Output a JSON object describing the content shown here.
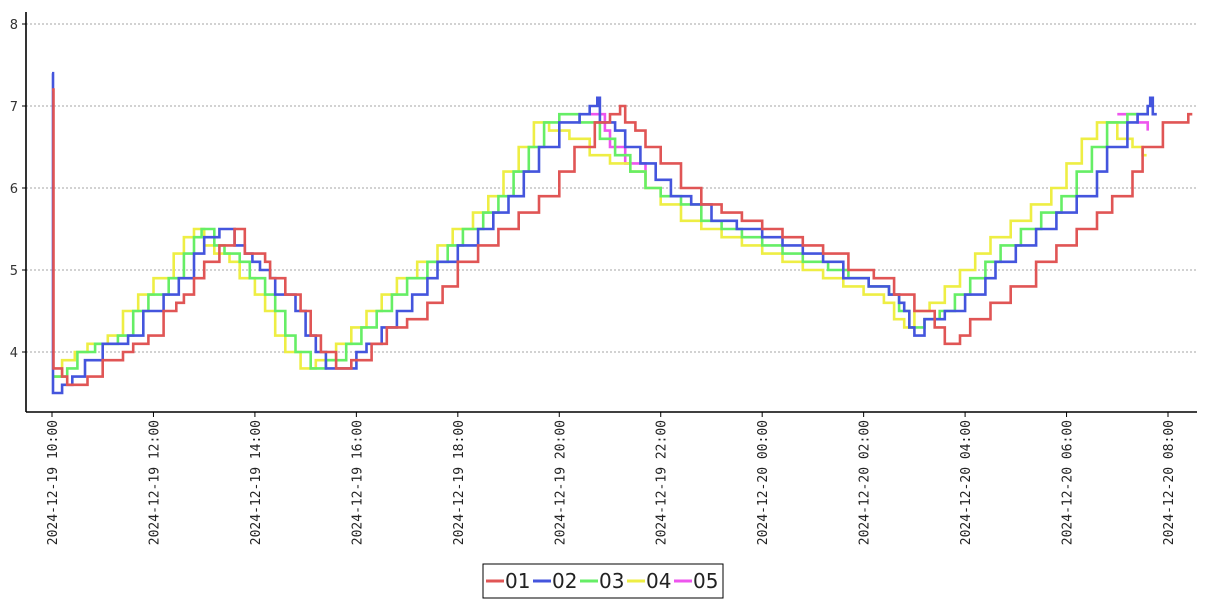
{
  "chart_data": {
    "type": "line",
    "step": true,
    "ylim": [
      3.35,
      8.1
    ],
    "yticks": [
      4,
      5,
      6,
      7,
      8
    ],
    "grid": true,
    "legend_position": "bottom-center",
    "xticks": [
      {
        "x": 0,
        "label": "2024-12-19 10:00"
      },
      {
        "x": 2,
        "label": "2024-12-19 12:00"
      },
      {
        "x": 4,
        "label": "2024-12-19 14:00"
      },
      {
        "x": 6,
        "label": "2024-12-19 16:00"
      },
      {
        "x": 8,
        "label": "2024-12-19 18:00"
      },
      {
        "x": 10,
        "label": "2024-12-19 20:00"
      },
      {
        "x": 12,
        "label": "2024-12-19 22:00"
      },
      {
        "x": 14,
        "label": "2024-12-20 00:00"
      },
      {
        "x": 16,
        "label": "2024-12-20 02:00"
      },
      {
        "x": 18,
        "label": "2024-12-20 04:00"
      },
      {
        "x": 20,
        "label": "2024-12-20 06:00"
      },
      {
        "x": 22,
        "label": "2024-12-20 08:00"
      }
    ],
    "xlim": [
      -0.05,
      22.7
    ],
    "series": [
      {
        "name": "01",
        "color": "#e05555",
        "points": [
          [
            0,
            7.2
          ],
          [
            0.03,
            3.8
          ],
          [
            0.2,
            3.7
          ],
          [
            0.3,
            3.6
          ],
          [
            0.7,
            3.7
          ],
          [
            1.0,
            3.9
          ],
          [
            1.4,
            4.0
          ],
          [
            1.6,
            4.1
          ],
          [
            1.9,
            4.2
          ],
          [
            2.2,
            4.5
          ],
          [
            2.45,
            4.6
          ],
          [
            2.6,
            4.7
          ],
          [
            2.8,
            4.9
          ],
          [
            3.0,
            5.1
          ],
          [
            3.3,
            5.3
          ],
          [
            3.6,
            5.5
          ],
          [
            3.8,
            5.2
          ],
          [
            4.2,
            5.1
          ],
          [
            4.3,
            4.9
          ],
          [
            4.6,
            4.7
          ],
          [
            4.9,
            4.5
          ],
          [
            5.1,
            4.2
          ],
          [
            5.3,
            4.0
          ],
          [
            5.6,
            3.8
          ],
          [
            5.9,
            3.9
          ],
          [
            6.3,
            4.1
          ],
          [
            6.6,
            4.3
          ],
          [
            7.0,
            4.4
          ],
          [
            7.4,
            4.6
          ],
          [
            7.7,
            4.8
          ],
          [
            8.0,
            5.1
          ],
          [
            8.4,
            5.3
          ],
          [
            8.8,
            5.5
          ],
          [
            9.2,
            5.7
          ],
          [
            9.6,
            5.9
          ],
          [
            10.0,
            6.2
          ],
          [
            10.3,
            6.5
          ],
          [
            10.7,
            6.8
          ],
          [
            11.0,
            6.9
          ],
          [
            11.2,
            7.0
          ],
          [
            11.3,
            6.8
          ],
          [
            11.5,
            6.7
          ],
          [
            11.7,
            6.5
          ],
          [
            12.0,
            6.3
          ],
          [
            12.4,
            6.0
          ],
          [
            12.8,
            5.8
          ],
          [
            13.2,
            5.7
          ],
          [
            13.6,
            5.6
          ],
          [
            14.0,
            5.5
          ],
          [
            14.4,
            5.4
          ],
          [
            14.8,
            5.3
          ],
          [
            15.2,
            5.2
          ],
          [
            15.7,
            5.0
          ],
          [
            16.2,
            4.9
          ],
          [
            16.6,
            4.7
          ],
          [
            17.0,
            4.5
          ],
          [
            17.4,
            4.3
          ],
          [
            17.6,
            4.1
          ],
          [
            17.9,
            4.2
          ],
          [
            18.1,
            4.4
          ],
          [
            18.5,
            4.6
          ],
          [
            18.9,
            4.8
          ],
          [
            19.4,
            5.1
          ],
          [
            19.8,
            5.3
          ],
          [
            20.2,
            5.5
          ],
          [
            20.6,
            5.7
          ],
          [
            20.9,
            5.9
          ],
          [
            21.3,
            6.2
          ],
          [
            21.5,
            6.5
          ],
          [
            21.9,
            6.8
          ],
          [
            22.0,
            6.8
          ],
          [
            22.4,
            6.9
          ]
        ]
      },
      {
        "name": "02",
        "color": "#4455dd",
        "points": [
          [
            0,
            7.4
          ],
          [
            0.02,
            3.5
          ],
          [
            0.2,
            3.6
          ],
          [
            0.4,
            3.7
          ],
          [
            0.65,
            3.9
          ],
          [
            1.0,
            4.1
          ],
          [
            1.5,
            4.2
          ],
          [
            1.8,
            4.5
          ],
          [
            2.2,
            4.7
          ],
          [
            2.5,
            4.9
          ],
          [
            2.8,
            5.2
          ],
          [
            3.0,
            5.4
          ],
          [
            3.3,
            5.5
          ],
          [
            3.6,
            5.3
          ],
          [
            3.8,
            5.2
          ],
          [
            3.95,
            5.1
          ],
          [
            4.1,
            5.0
          ],
          [
            4.3,
            4.9
          ],
          [
            4.4,
            4.7
          ],
          [
            4.8,
            4.5
          ],
          [
            5.0,
            4.2
          ],
          [
            5.2,
            4.0
          ],
          [
            5.4,
            3.8
          ],
          [
            5.7,
            3.8
          ],
          [
            6.0,
            4.0
          ],
          [
            6.2,
            4.1
          ],
          [
            6.5,
            4.3
          ],
          [
            6.8,
            4.5
          ],
          [
            7.1,
            4.7
          ],
          [
            7.4,
            4.9
          ],
          [
            7.6,
            5.1
          ],
          [
            8.0,
            5.3
          ],
          [
            8.4,
            5.5
          ],
          [
            8.7,
            5.7
          ],
          [
            9.0,
            5.9
          ],
          [
            9.3,
            6.2
          ],
          [
            9.6,
            6.5
          ],
          [
            10.0,
            6.8
          ],
          [
            10.4,
            6.9
          ],
          [
            10.6,
            7.0
          ],
          [
            10.75,
            7.1
          ],
          [
            10.8,
            6.8
          ],
          [
            11.1,
            6.7
          ],
          [
            11.3,
            6.5
          ],
          [
            11.6,
            6.3
          ],
          [
            11.9,
            6.1
          ],
          [
            12.2,
            5.9
          ],
          [
            12.6,
            5.8
          ],
          [
            13.0,
            5.6
          ],
          [
            13.5,
            5.5
          ],
          [
            14.0,
            5.4
          ],
          [
            14.4,
            5.3
          ],
          [
            14.8,
            5.2
          ],
          [
            15.2,
            5.1
          ],
          [
            15.6,
            4.9
          ],
          [
            16.1,
            4.8
          ],
          [
            16.5,
            4.7
          ],
          [
            16.7,
            4.6
          ],
          [
            16.8,
            4.5
          ],
          [
            16.9,
            4.3
          ],
          [
            17.0,
            4.2
          ],
          [
            17.2,
            4.4
          ],
          [
            17.6,
            4.5
          ],
          [
            18.0,
            4.7
          ],
          [
            18.4,
            4.9
          ],
          [
            18.6,
            5.1
          ],
          [
            19.0,
            5.3
          ],
          [
            19.4,
            5.5
          ],
          [
            19.8,
            5.7
          ],
          [
            20.2,
            5.9
          ],
          [
            20.6,
            6.2
          ],
          [
            20.8,
            6.5
          ],
          [
            21.2,
            6.8
          ],
          [
            21.4,
            6.9
          ],
          [
            21.6,
            7.0
          ],
          [
            21.65,
            7.1
          ],
          [
            21.7,
            6.9
          ]
        ]
      },
      {
        "name": "03",
        "color": "#66ee66",
        "points": [
          [
            0,
            3.7
          ],
          [
            0.3,
            3.8
          ],
          [
            0.5,
            4.0
          ],
          [
            0.85,
            4.1
          ],
          [
            1.3,
            4.2
          ],
          [
            1.6,
            4.5
          ],
          [
            1.9,
            4.7
          ],
          [
            2.3,
            4.9
          ],
          [
            2.6,
            5.2
          ],
          [
            2.8,
            5.4
          ],
          [
            2.95,
            5.5
          ],
          [
            3.2,
            5.3
          ],
          [
            3.4,
            5.2
          ],
          [
            3.7,
            5.1
          ],
          [
            3.9,
            4.9
          ],
          [
            4.2,
            4.7
          ],
          [
            4.4,
            4.5
          ],
          [
            4.6,
            4.2
          ],
          [
            4.8,
            4.0
          ],
          [
            5.1,
            3.8
          ],
          [
            5.4,
            3.9
          ],
          [
            5.8,
            4.1
          ],
          [
            6.1,
            4.3
          ],
          [
            6.4,
            4.5
          ],
          [
            6.7,
            4.7
          ],
          [
            7.0,
            4.9
          ],
          [
            7.4,
            5.1
          ],
          [
            7.8,
            5.3
          ],
          [
            8.1,
            5.5
          ],
          [
            8.5,
            5.7
          ],
          [
            8.8,
            5.9
          ],
          [
            9.1,
            6.2
          ],
          [
            9.4,
            6.5
          ],
          [
            9.7,
            6.8
          ],
          [
            10.0,
            6.9
          ],
          [
            10.4,
            6.8
          ],
          [
            10.8,
            6.6
          ],
          [
            11.1,
            6.4
          ],
          [
            11.4,
            6.2
          ],
          [
            11.7,
            6.0
          ],
          [
            12.0,
            5.9
          ],
          [
            12.4,
            5.8
          ],
          [
            12.8,
            5.6
          ],
          [
            13.2,
            5.5
          ],
          [
            13.6,
            5.4
          ],
          [
            14.0,
            5.3
          ],
          [
            14.4,
            5.2
          ],
          [
            14.8,
            5.1
          ],
          [
            15.3,
            5.0
          ],
          [
            15.7,
            4.9
          ],
          [
            16.1,
            4.8
          ],
          [
            16.5,
            4.7
          ],
          [
            16.7,
            4.5
          ],
          [
            16.9,
            4.3
          ],
          [
            17.2,
            4.4
          ],
          [
            17.5,
            4.5
          ],
          [
            17.8,
            4.7
          ],
          [
            18.1,
            4.9
          ],
          [
            18.4,
            5.1
          ],
          [
            18.7,
            5.3
          ],
          [
            19.1,
            5.5
          ],
          [
            19.5,
            5.7
          ],
          [
            19.9,
            5.9
          ],
          [
            20.2,
            6.2
          ],
          [
            20.5,
            6.5
          ],
          [
            20.8,
            6.8
          ],
          [
            21.2,
            6.9
          ],
          [
            21.5,
            6.9
          ]
        ]
      },
      {
        "name": "04",
        "color": "#eeee44",
        "points": [
          [
            0,
            3.7
          ],
          [
            0.2,
            3.9
          ],
          [
            0.45,
            4.0
          ],
          [
            0.7,
            4.1
          ],
          [
            1.1,
            4.2
          ],
          [
            1.4,
            4.5
          ],
          [
            1.7,
            4.7
          ],
          [
            2.0,
            4.9
          ],
          [
            2.4,
            5.2
          ],
          [
            2.6,
            5.4
          ],
          [
            2.8,
            5.5
          ],
          [
            3.0,
            5.3
          ],
          [
            3.2,
            5.2
          ],
          [
            3.5,
            5.1
          ],
          [
            3.7,
            4.9
          ],
          [
            4.0,
            4.7
          ],
          [
            4.2,
            4.5
          ],
          [
            4.4,
            4.2
          ],
          [
            4.6,
            4.0
          ],
          [
            4.9,
            3.8
          ],
          [
            5.2,
            3.9
          ],
          [
            5.6,
            4.1
          ],
          [
            5.9,
            4.3
          ],
          [
            6.2,
            4.5
          ],
          [
            6.5,
            4.7
          ],
          [
            6.8,
            4.9
          ],
          [
            7.2,
            5.1
          ],
          [
            7.6,
            5.3
          ],
          [
            7.9,
            5.5
          ],
          [
            8.3,
            5.7
          ],
          [
            8.6,
            5.9
          ],
          [
            8.9,
            6.2
          ],
          [
            9.2,
            6.5
          ],
          [
            9.5,
            6.8
          ],
          [
            9.8,
            6.7
          ],
          [
            10.2,
            6.6
          ],
          [
            10.6,
            6.4
          ],
          [
            11.0,
            6.3
          ],
          [
            11.4,
            6.2
          ],
          [
            11.7,
            6.0
          ],
          [
            12.0,
            5.8
          ],
          [
            12.4,
            5.6
          ],
          [
            12.8,
            5.5
          ],
          [
            13.2,
            5.4
          ],
          [
            13.6,
            5.3
          ],
          [
            14.0,
            5.2
          ],
          [
            14.4,
            5.1
          ],
          [
            14.8,
            5.0
          ],
          [
            15.2,
            4.9
          ],
          [
            15.6,
            4.8
          ],
          [
            16.0,
            4.7
          ],
          [
            16.4,
            4.6
          ],
          [
            16.6,
            4.4
          ],
          [
            16.8,
            4.3
          ],
          [
            17.0,
            4.5
          ],
          [
            17.3,
            4.6
          ],
          [
            17.6,
            4.8
          ],
          [
            17.9,
            5.0
          ],
          [
            18.2,
            5.2
          ],
          [
            18.5,
            5.4
          ],
          [
            18.9,
            5.6
          ],
          [
            19.3,
            5.8
          ],
          [
            19.7,
            6.0
          ],
          [
            20.0,
            6.3
          ],
          [
            20.3,
            6.6
          ],
          [
            20.6,
            6.8
          ],
          [
            21.0,
            6.6
          ],
          [
            21.3,
            6.5
          ],
          [
            21.5,
            6.4
          ]
        ]
      },
      {
        "name": "05",
        "color": "#ee55ee",
        "points": [
          [
            10.6,
            6.9
          ],
          [
            10.9,
            6.7
          ],
          [
            11.0,
            6.5
          ],
          [
            11.3,
            6.3
          ],
          [
            11.7,
            6.1
          ],
          [
            21.0,
            6.9
          ],
          [
            21.4,
            6.8
          ],
          [
            21.6,
            6.7
          ]
        ],
        "segments": [
          [
            0,
            4
          ],
          [
            5,
            7
          ]
        ]
      }
    ]
  }
}
